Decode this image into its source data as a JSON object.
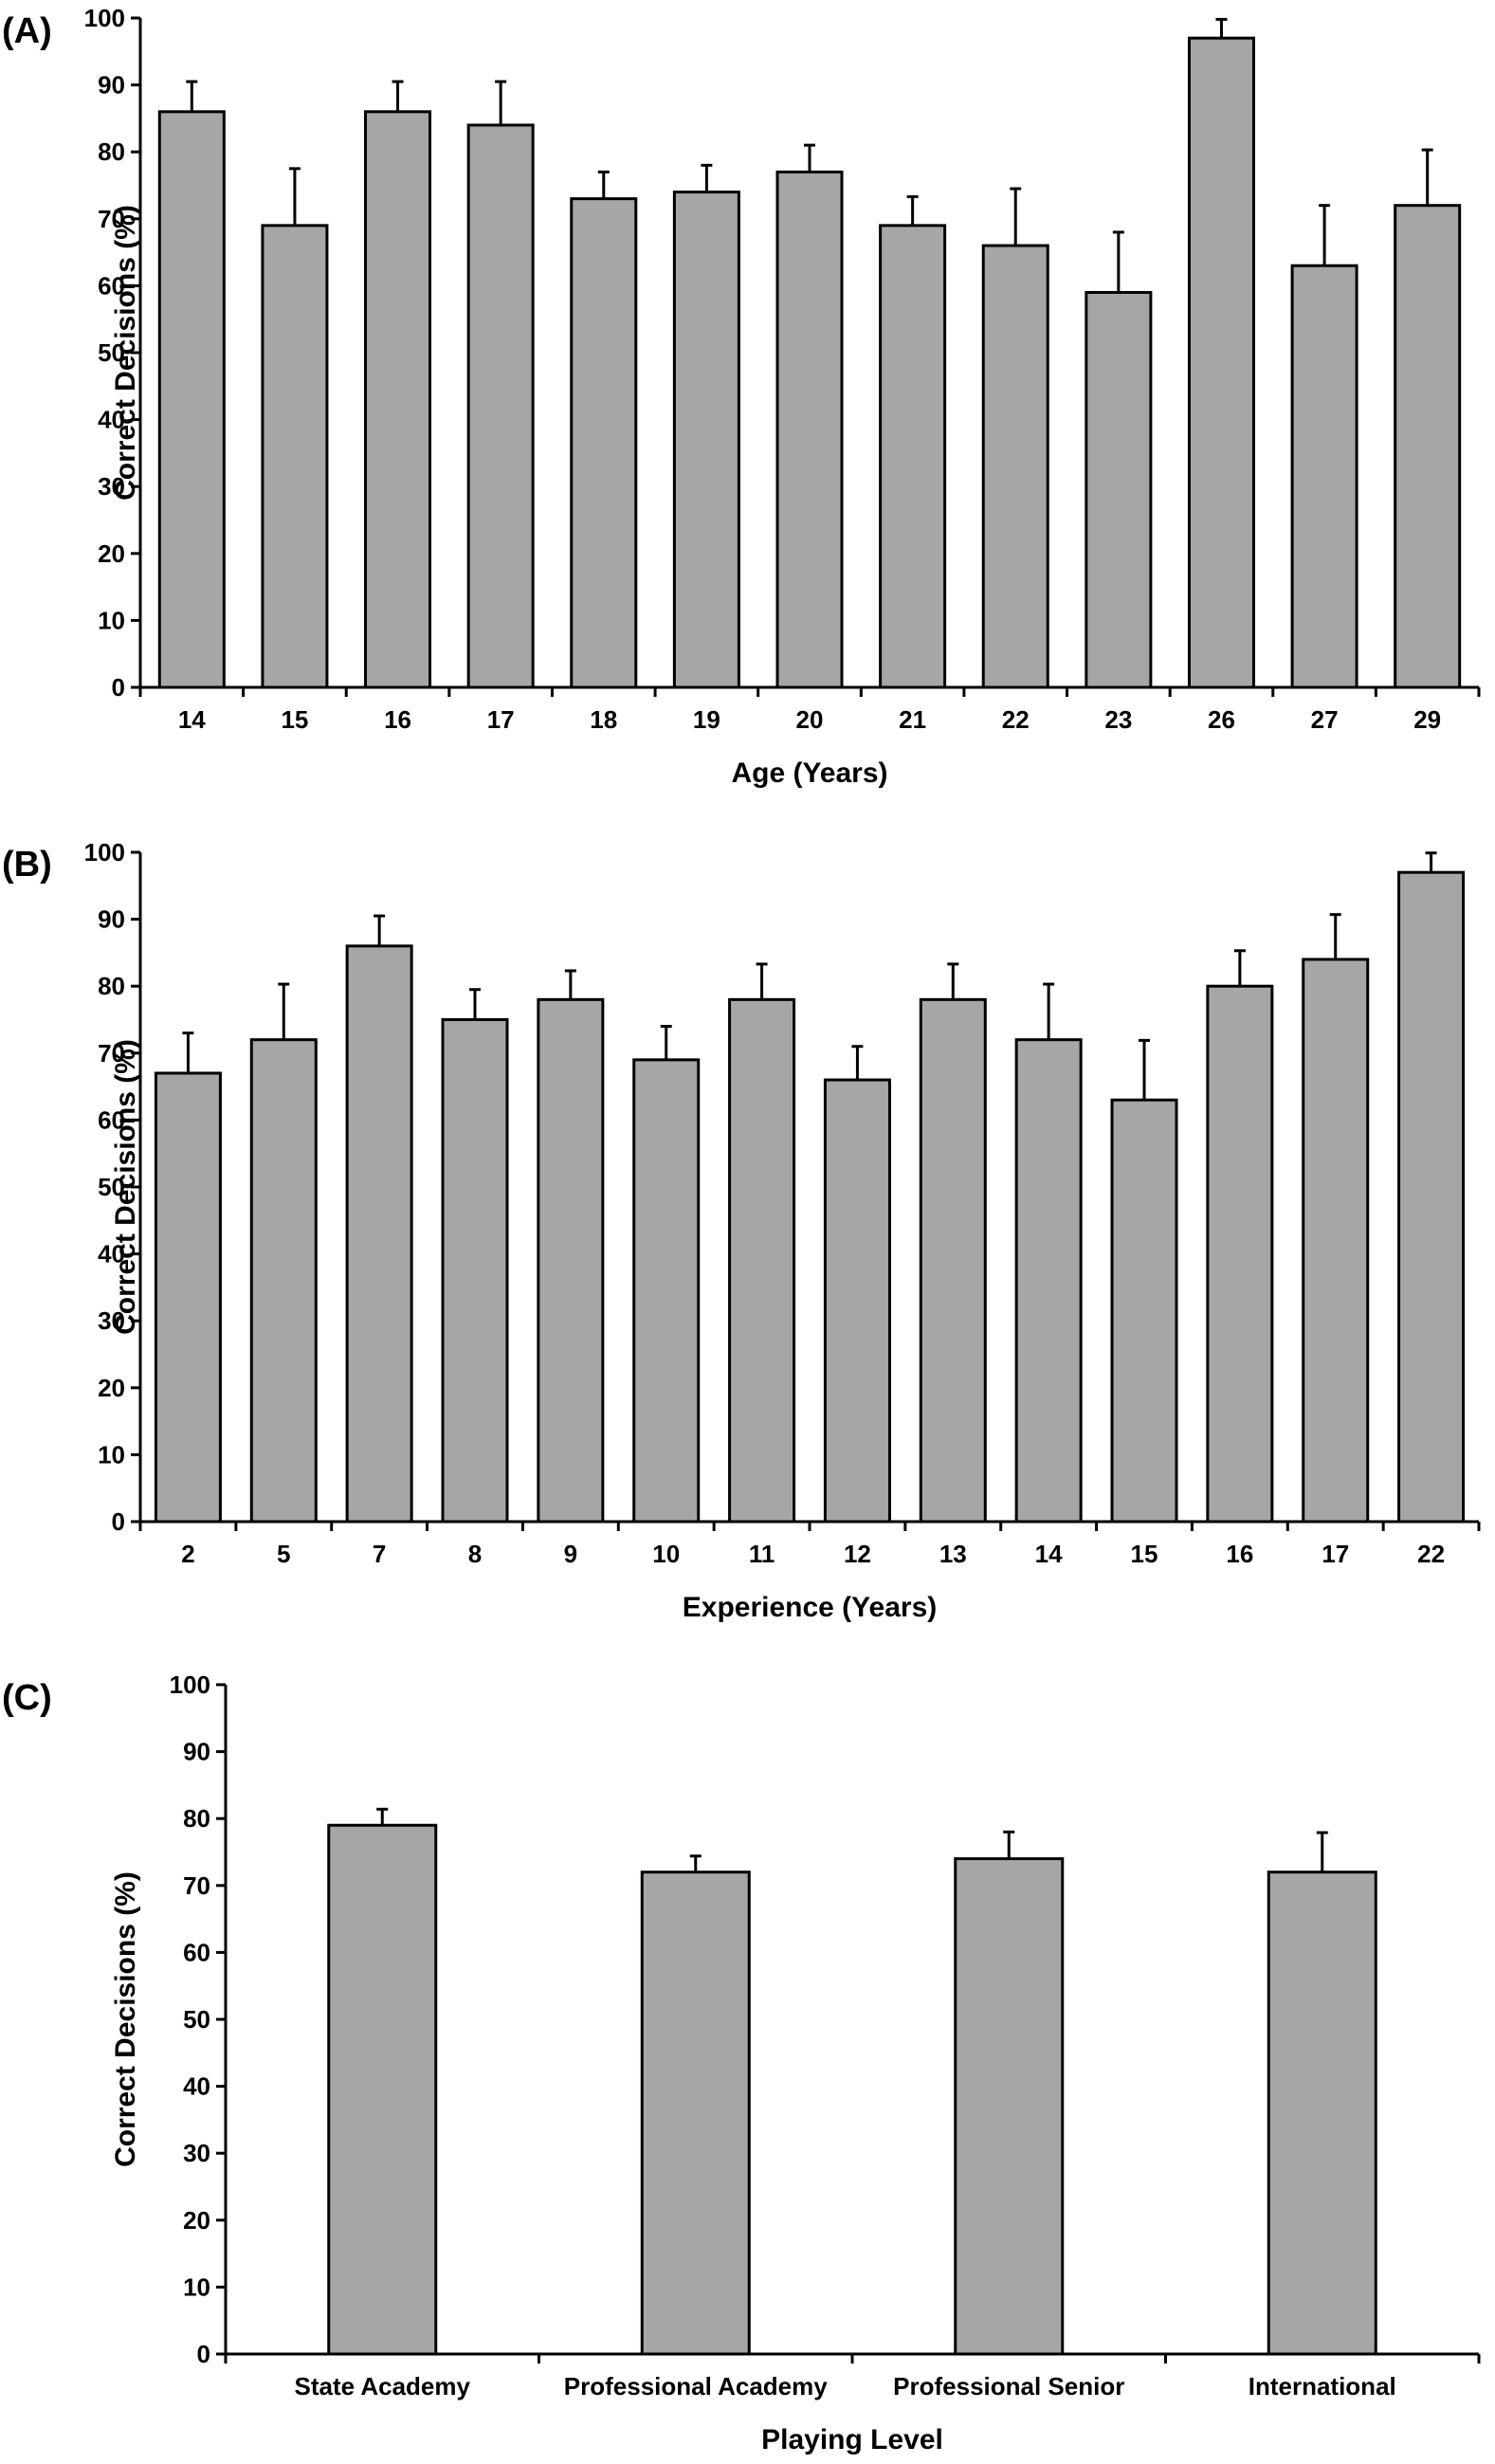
{
  "colors": {
    "bar_fill": "#a6a6a6",
    "bar_stroke": "#000000",
    "axis": "#000000"
  },
  "chart_data": [
    {
      "panel": "(A)",
      "type": "bar",
      "title": "",
      "xlabel": "Age (Years)",
      "ylabel": "Correct Decisions (%)",
      "ylim": [
        0,
        100
      ],
      "yticks": [
        0,
        10,
        20,
        30,
        40,
        50,
        60,
        70,
        80,
        90,
        100
      ],
      "grid": false,
      "error_bars": "upper only",
      "categories": [
        "14",
        "15",
        "16",
        "17",
        "18",
        "19",
        "20",
        "21",
        "22",
        "23",
        "26",
        "27",
        "29"
      ],
      "values": [
        86,
        69,
        86,
        84,
        73,
        74,
        77,
        69,
        66,
        59,
        97,
        63,
        72
      ],
      "errors": [
        4.5,
        8.5,
        4.5,
        6.5,
        4,
        4,
        4,
        4.3,
        8.5,
        9,
        2.8,
        9,
        8.3
      ]
    },
    {
      "panel": "(B)",
      "type": "bar",
      "title": "",
      "xlabel": "Experience (Years)",
      "ylabel": "Correct Decisions (%)",
      "ylim": [
        0,
        100
      ],
      "yticks": [
        0,
        10,
        20,
        30,
        40,
        50,
        60,
        70,
        80,
        90,
        100
      ],
      "grid": false,
      "error_bars": "upper only",
      "categories": [
        "2",
        "5",
        "7",
        "8",
        "9",
        "10",
        "11",
        "12",
        "13",
        "14",
        "15",
        "16",
        "17",
        "22"
      ],
      "values": [
        67,
        72,
        86,
        75,
        78,
        69,
        78,
        66,
        78,
        72,
        63,
        80,
        84,
        97
      ],
      "errors": [
        6,
        8.3,
        4.5,
        4.5,
        4.3,
        5,
        5.3,
        5,
        5.3,
        8.3,
        8.9,
        5.3,
        6.7,
        2.9
      ]
    },
    {
      "panel": "(C)",
      "type": "bar",
      "title": "",
      "xlabel": "Playing Level",
      "ylabel": "Correct Decisions (%)",
      "ylim": [
        0,
        100
      ],
      "yticks": [
        0,
        10,
        20,
        30,
        40,
        50,
        60,
        70,
        80,
        90,
        100
      ],
      "grid": false,
      "error_bars": "upper only",
      "categories": [
        "State Academy",
        "Professional Academy",
        "Professional Senior",
        "International"
      ],
      "values": [
        79,
        72,
        74,
        72
      ],
      "errors": [
        2.4,
        2.4,
        4,
        5.9
      ]
    }
  ]
}
